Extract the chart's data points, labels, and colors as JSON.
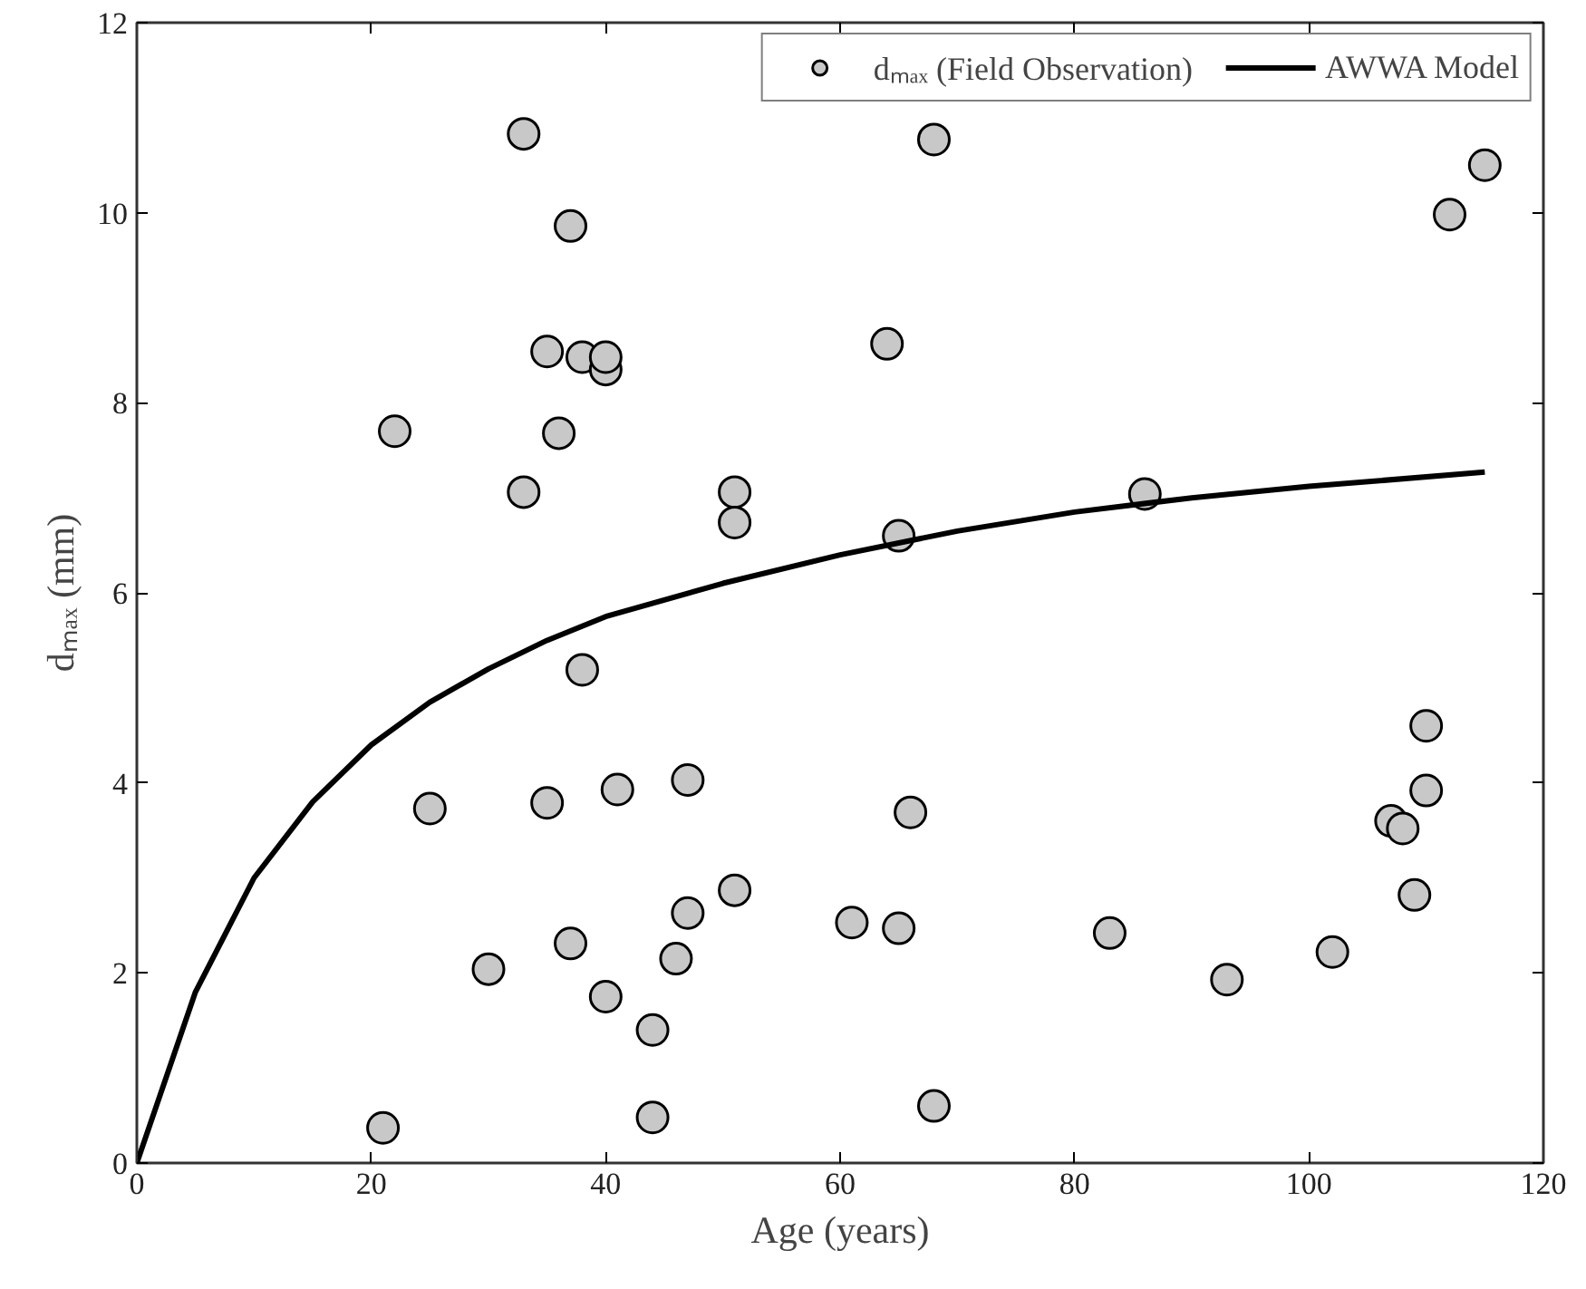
{
  "chart_data": {
    "type": "scatter",
    "xlabel": "Age (years)",
    "ylabel": "dₘₐₓ (mm)",
    "xlim": [
      0,
      120
    ],
    "xticks": [
      0,
      20,
      40,
      60,
      80,
      100,
      120
    ],
    "ylim": [
      0,
      12
    ],
    "yticks": [
      0,
      2,
      4,
      6,
      8,
      10,
      12
    ],
    "grid": false,
    "legend": "top right",
    "series": [
      {
        "name": "dₘₐₓ (Field Observation)",
        "marker": "circle",
        "color": "#c8c8c8",
        "x": [
          21,
          22,
          25,
          30,
          33,
          33,
          35,
          35,
          36,
          37,
          37,
          38,
          38,
          40,
          40,
          40,
          41,
          44,
          44,
          46,
          47,
          47,
          51,
          51,
          51,
          61,
          64,
          65,
          65,
          66,
          68,
          68,
          83,
          86,
          93,
          102,
          107,
          108,
          109,
          110,
          110,
          112,
          115
        ],
        "values": [
          0.37,
          7.7,
          3.73,
          2.04,
          10.83,
          7.06,
          8.54,
          3.79,
          7.68,
          9.86,
          2.31,
          8.48,
          5.19,
          8.35,
          8.48,
          1.75,
          3.93,
          1.4,
          0.48,
          2.15,
          2.63,
          4.03,
          2.87,
          7.06,
          6.74,
          2.53,
          8.62,
          6.6,
          2.47,
          3.69,
          0.6,
          10.77,
          2.42,
          7.04,
          1.93,
          2.22,
          3.6,
          3.52,
          2.82,
          3.92,
          4.6,
          9.98,
          10.5
        ]
      },
      {
        "name": "AWWA Model",
        "type": "line",
        "color": "#000000",
        "line_style": "solid",
        "x": [
          0,
          5,
          10,
          15,
          20,
          25,
          30,
          35,
          40,
          50,
          60,
          70,
          80,
          90,
          100,
          115
        ],
        "values": [
          0,
          1.8,
          3.0,
          3.8,
          4.4,
          4.85,
          5.2,
          5.5,
          5.75,
          6.1,
          6.4,
          6.65,
          6.85,
          7.0,
          7.12,
          7.27
        ]
      }
    ]
  }
}
